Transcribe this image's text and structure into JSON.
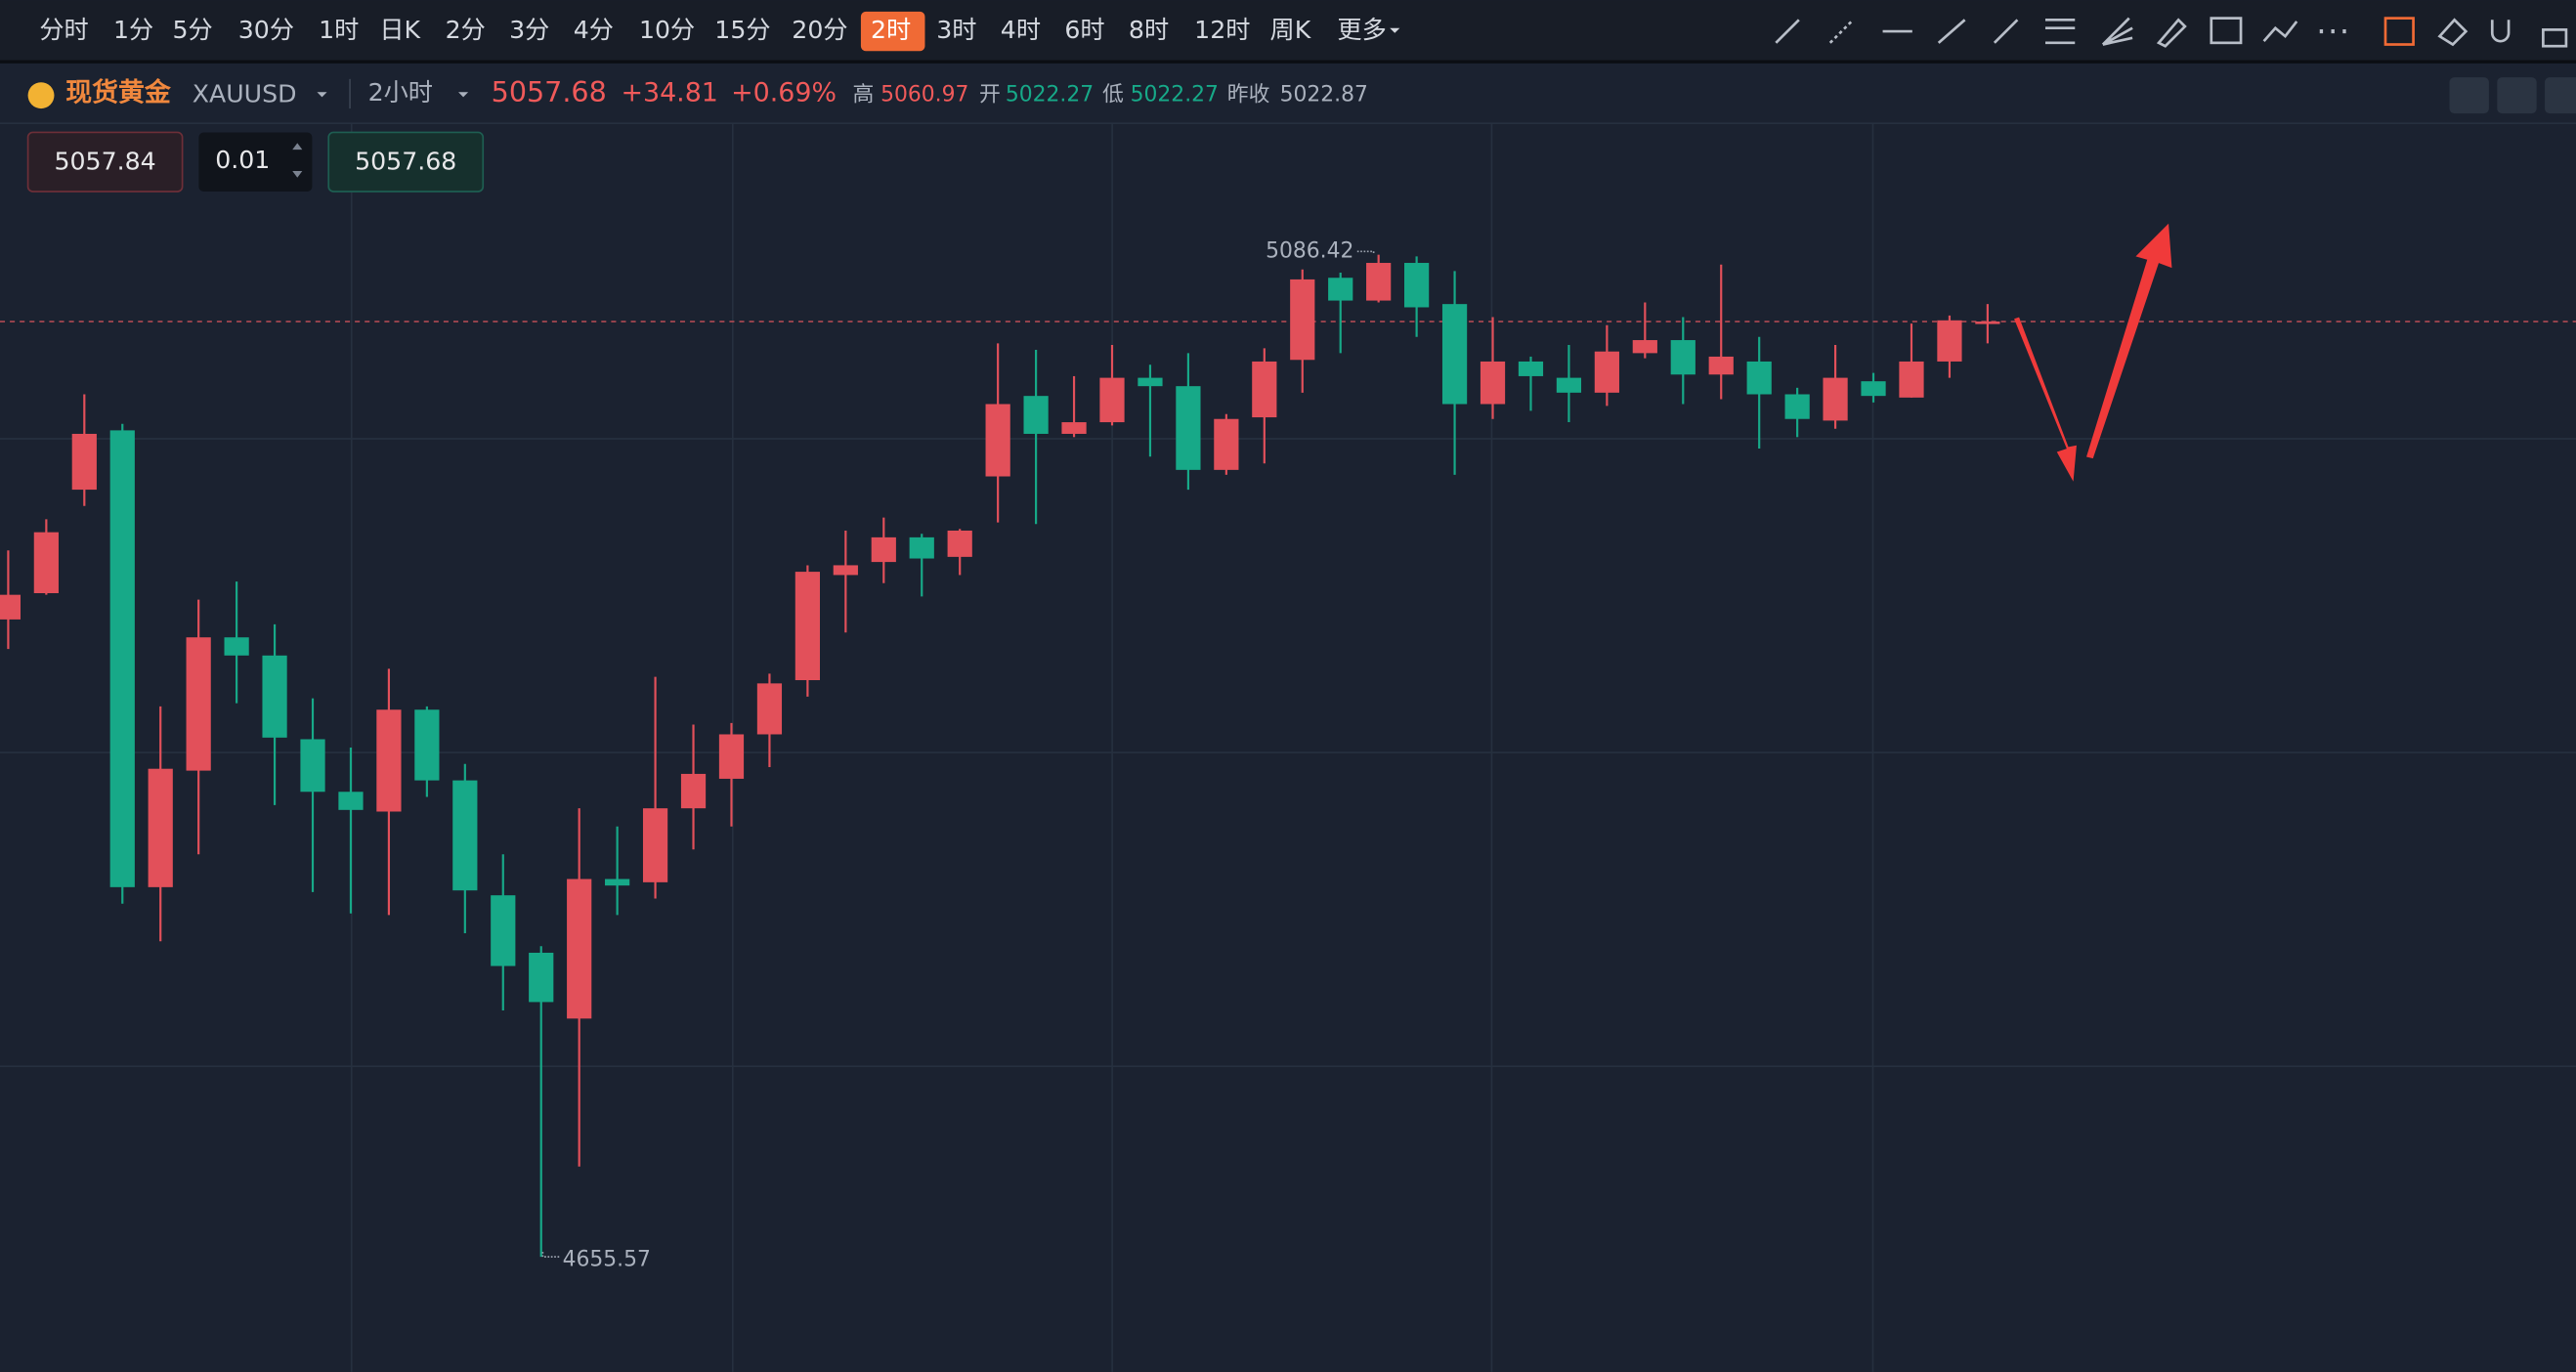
{
  "toolbar": {
    "tabs": [
      "分时",
      "1分",
      "5分",
      "30分",
      "1时",
      "日K",
      "2分",
      "3分",
      "4分",
      "10分",
      "15分",
      "20分",
      "2时",
      "3时",
      "4时",
      "6时",
      "8时",
      "12时",
      "周K",
      "更多"
    ],
    "active": 12
  },
  "quote": {
    "name": "现货黄金",
    "symbol": "XAUUSD",
    "period": "2小时",
    "change": "+34.81",
    "change_pct": "+0.69%",
    "high_label": "高",
    "high": "5060.97",
    "open_label": "开",
    "open": "5022.27",
    "low_label": "低",
    "low": "5022.27",
    "prev_label": "昨收",
    "prev": "5022.87"
  },
  "order": {
    "sell": "5057.84",
    "qty": "0.01"
  },
  "chart_data": {
    "type": "candlestick",
    "up_color": "#e2505a",
    "down_color": "#17a988",
    "last_price": 5057.68,
    "max_label": "5086.42",
    "min_label": "4655.57",
    "ylim": [
      4606.1,
      5142.9
    ],
    "open": [
      4929.6,
      4940.9,
      4985.4,
      5010.9,
      4814.5,
      4864.6,
      4921.9,
      4914.1,
      4878.1,
      4855.5,
      4847.0,
      4890.8,
      4860.4,
      4811.0,
      4786.3,
      4758.0,
      4818.0,
      4816.6,
      4848.4,
      4861.1,
      4880.2,
      4903.5,
      4948.7,
      4954.3,
      4964.9,
      4956.5,
      4991.1,
      5025.7,
      5009.4,
      5014.4,
      5033.5,
      5029.9,
      4993.9,
      5016.5,
      5041.2,
      5076.5,
      5066.7,
      5082.9,
      5065.2,
      5022.2,
      5040.5,
      5033.5,
      5027.1,
      5044.1,
      5049.7,
      5034.9,
      5040.5,
      5026.4,
      5015.1,
      5032.0,
      5025.0,
      5040.5,
      5057.0
    ],
    "high": [
      4959.3,
      4972.7,
      5026.4,
      5013.7,
      4892.2,
      4938.1,
      4945.9,
      4927.5,
      4895.7,
      4874.5,
      4908.4,
      4892.2,
      4867.5,
      4828.6,
      4789.1,
      4848.4,
      4840.6,
      4904.9,
      4884.4,
      4885.1,
      4906.3,
      4952.9,
      4967.8,
      4973.4,
      4966.4,
      4968.5,
      5048.3,
      5045.5,
      5034.2,
      5047.6,
      5039.1,
      5044.1,
      5017.9,
      5046.2,
      5080.1,
      5078.7,
      5086.42,
      5085.7,
      5079.4,
      5059.6,
      5042.6,
      5047.6,
      5056.1,
      5065.9,
      5059.6,
      5082.2,
      5051.1,
      5029.2,
      5047.6,
      5035.6,
      5056.8,
      5060.3,
      5065.2
    ],
    "low": [
      4916.9,
      4940.2,
      4978.4,
      4807.4,
      4791.2,
      4828.6,
      4893.6,
      4849.8,
      4812.4,
      4803.2,
      4802.5,
      4853.3,
      4794.7,
      4761.5,
      4655.57,
      4694.4,
      4802.5,
      4809.6,
      4830.7,
      4840.6,
      4866.1,
      4896.4,
      4924.0,
      4945.2,
      4939.5,
      4948.7,
      4971.3,
      4970.6,
      5008.0,
      5013.0,
      4999.6,
      4985.4,
      4991.8,
      4996.7,
      5027.1,
      5044.1,
      5065.9,
      5051.1,
      4991.8,
      5015.8,
      5019.3,
      5014.4,
      5021.4,
      5041.9,
      5022.2,
      5024.3,
      5003.1,
      5008.0,
      5011.6,
      5022.9,
      5025.0,
      5033.5,
      5048.3
    ],
    "close": [
      4940.2,
      4967.1,
      5009.4,
      4814.5,
      4865.4,
      4921.9,
      4914.1,
      4878.8,
      4855.5,
      4847.7,
      4890.8,
      4860.4,
      4813.1,
      4780.6,
      4765.1,
      4818.0,
      4815.2,
      4848.4,
      4863.2,
      4880.2,
      4902.1,
      4950.1,
      4952.9,
      4964.9,
      4955.8,
      4967.8,
      5022.2,
      5009.4,
      5014.4,
      5033.5,
      5029.9,
      4993.9,
      5015.8,
      5040.5,
      5075.8,
      5066.7,
      5082.9,
      5063.8,
      5022.2,
      5040.5,
      5034.2,
      5027.1,
      5044.8,
      5049.7,
      5034.9,
      5042.6,
      5026.4,
      5015.8,
      5033.5,
      5025.7,
      5040.5,
      5058.2,
      5057.68
    ]
  }
}
